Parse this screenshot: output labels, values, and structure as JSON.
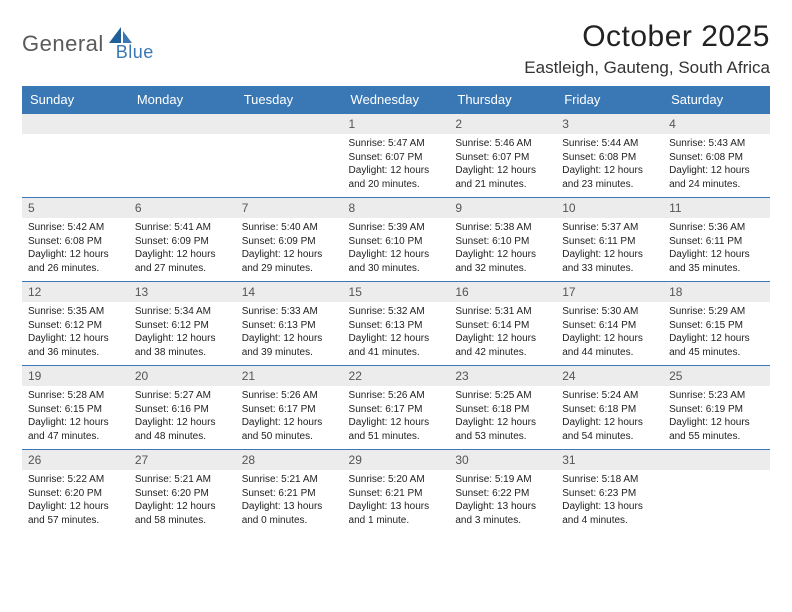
{
  "brand": {
    "part1": "General",
    "part2": "Blue"
  },
  "title": "October 2025",
  "location": "Eastleigh, Gauteng, South Africa",
  "colors": {
    "header_bg": "#3a78b5",
    "header_text": "#ffffff",
    "daynum_bg": "#ececec",
    "row_border": "#3a78b5",
    "logo_gray": "#5a5a5a",
    "logo_blue": "#3a78b5"
  },
  "weekdays": [
    "Sunday",
    "Monday",
    "Tuesday",
    "Wednesday",
    "Thursday",
    "Friday",
    "Saturday"
  ],
  "weeks": [
    [
      null,
      null,
      null,
      {
        "n": "1",
        "sr": "5:47 AM",
        "ss": "6:07 PM",
        "dl": "12 hours and 20 minutes."
      },
      {
        "n": "2",
        "sr": "5:46 AM",
        "ss": "6:07 PM",
        "dl": "12 hours and 21 minutes."
      },
      {
        "n": "3",
        "sr": "5:44 AM",
        "ss": "6:08 PM",
        "dl": "12 hours and 23 minutes."
      },
      {
        "n": "4",
        "sr": "5:43 AM",
        "ss": "6:08 PM",
        "dl": "12 hours and 24 minutes."
      }
    ],
    [
      {
        "n": "5",
        "sr": "5:42 AM",
        "ss": "6:08 PM",
        "dl": "12 hours and 26 minutes."
      },
      {
        "n": "6",
        "sr": "5:41 AM",
        "ss": "6:09 PM",
        "dl": "12 hours and 27 minutes."
      },
      {
        "n": "7",
        "sr": "5:40 AM",
        "ss": "6:09 PM",
        "dl": "12 hours and 29 minutes."
      },
      {
        "n": "8",
        "sr": "5:39 AM",
        "ss": "6:10 PM",
        "dl": "12 hours and 30 minutes."
      },
      {
        "n": "9",
        "sr": "5:38 AM",
        "ss": "6:10 PM",
        "dl": "12 hours and 32 minutes."
      },
      {
        "n": "10",
        "sr": "5:37 AM",
        "ss": "6:11 PM",
        "dl": "12 hours and 33 minutes."
      },
      {
        "n": "11",
        "sr": "5:36 AM",
        "ss": "6:11 PM",
        "dl": "12 hours and 35 minutes."
      }
    ],
    [
      {
        "n": "12",
        "sr": "5:35 AM",
        "ss": "6:12 PM",
        "dl": "12 hours and 36 minutes."
      },
      {
        "n": "13",
        "sr": "5:34 AM",
        "ss": "6:12 PM",
        "dl": "12 hours and 38 minutes."
      },
      {
        "n": "14",
        "sr": "5:33 AM",
        "ss": "6:13 PM",
        "dl": "12 hours and 39 minutes."
      },
      {
        "n": "15",
        "sr": "5:32 AM",
        "ss": "6:13 PM",
        "dl": "12 hours and 41 minutes."
      },
      {
        "n": "16",
        "sr": "5:31 AM",
        "ss": "6:14 PM",
        "dl": "12 hours and 42 minutes."
      },
      {
        "n": "17",
        "sr": "5:30 AM",
        "ss": "6:14 PM",
        "dl": "12 hours and 44 minutes."
      },
      {
        "n": "18",
        "sr": "5:29 AM",
        "ss": "6:15 PM",
        "dl": "12 hours and 45 minutes."
      }
    ],
    [
      {
        "n": "19",
        "sr": "5:28 AM",
        "ss": "6:15 PM",
        "dl": "12 hours and 47 minutes."
      },
      {
        "n": "20",
        "sr": "5:27 AM",
        "ss": "6:16 PM",
        "dl": "12 hours and 48 minutes."
      },
      {
        "n": "21",
        "sr": "5:26 AM",
        "ss": "6:17 PM",
        "dl": "12 hours and 50 minutes."
      },
      {
        "n": "22",
        "sr": "5:26 AM",
        "ss": "6:17 PM",
        "dl": "12 hours and 51 minutes."
      },
      {
        "n": "23",
        "sr": "5:25 AM",
        "ss": "6:18 PM",
        "dl": "12 hours and 53 minutes."
      },
      {
        "n": "24",
        "sr": "5:24 AM",
        "ss": "6:18 PM",
        "dl": "12 hours and 54 minutes."
      },
      {
        "n": "25",
        "sr": "5:23 AM",
        "ss": "6:19 PM",
        "dl": "12 hours and 55 minutes."
      }
    ],
    [
      {
        "n": "26",
        "sr": "5:22 AM",
        "ss": "6:20 PM",
        "dl": "12 hours and 57 minutes."
      },
      {
        "n": "27",
        "sr": "5:21 AM",
        "ss": "6:20 PM",
        "dl": "12 hours and 58 minutes."
      },
      {
        "n": "28",
        "sr": "5:21 AM",
        "ss": "6:21 PM",
        "dl": "13 hours and 0 minutes."
      },
      {
        "n": "29",
        "sr": "5:20 AM",
        "ss": "6:21 PM",
        "dl": "13 hours and 1 minute."
      },
      {
        "n": "30",
        "sr": "5:19 AM",
        "ss": "6:22 PM",
        "dl": "13 hours and 3 minutes."
      },
      {
        "n": "31",
        "sr": "5:18 AM",
        "ss": "6:23 PM",
        "dl": "13 hours and 4 minutes."
      },
      null
    ]
  ],
  "labels": {
    "sunrise": "Sunrise:",
    "sunset": "Sunset:",
    "daylight": "Daylight:"
  }
}
